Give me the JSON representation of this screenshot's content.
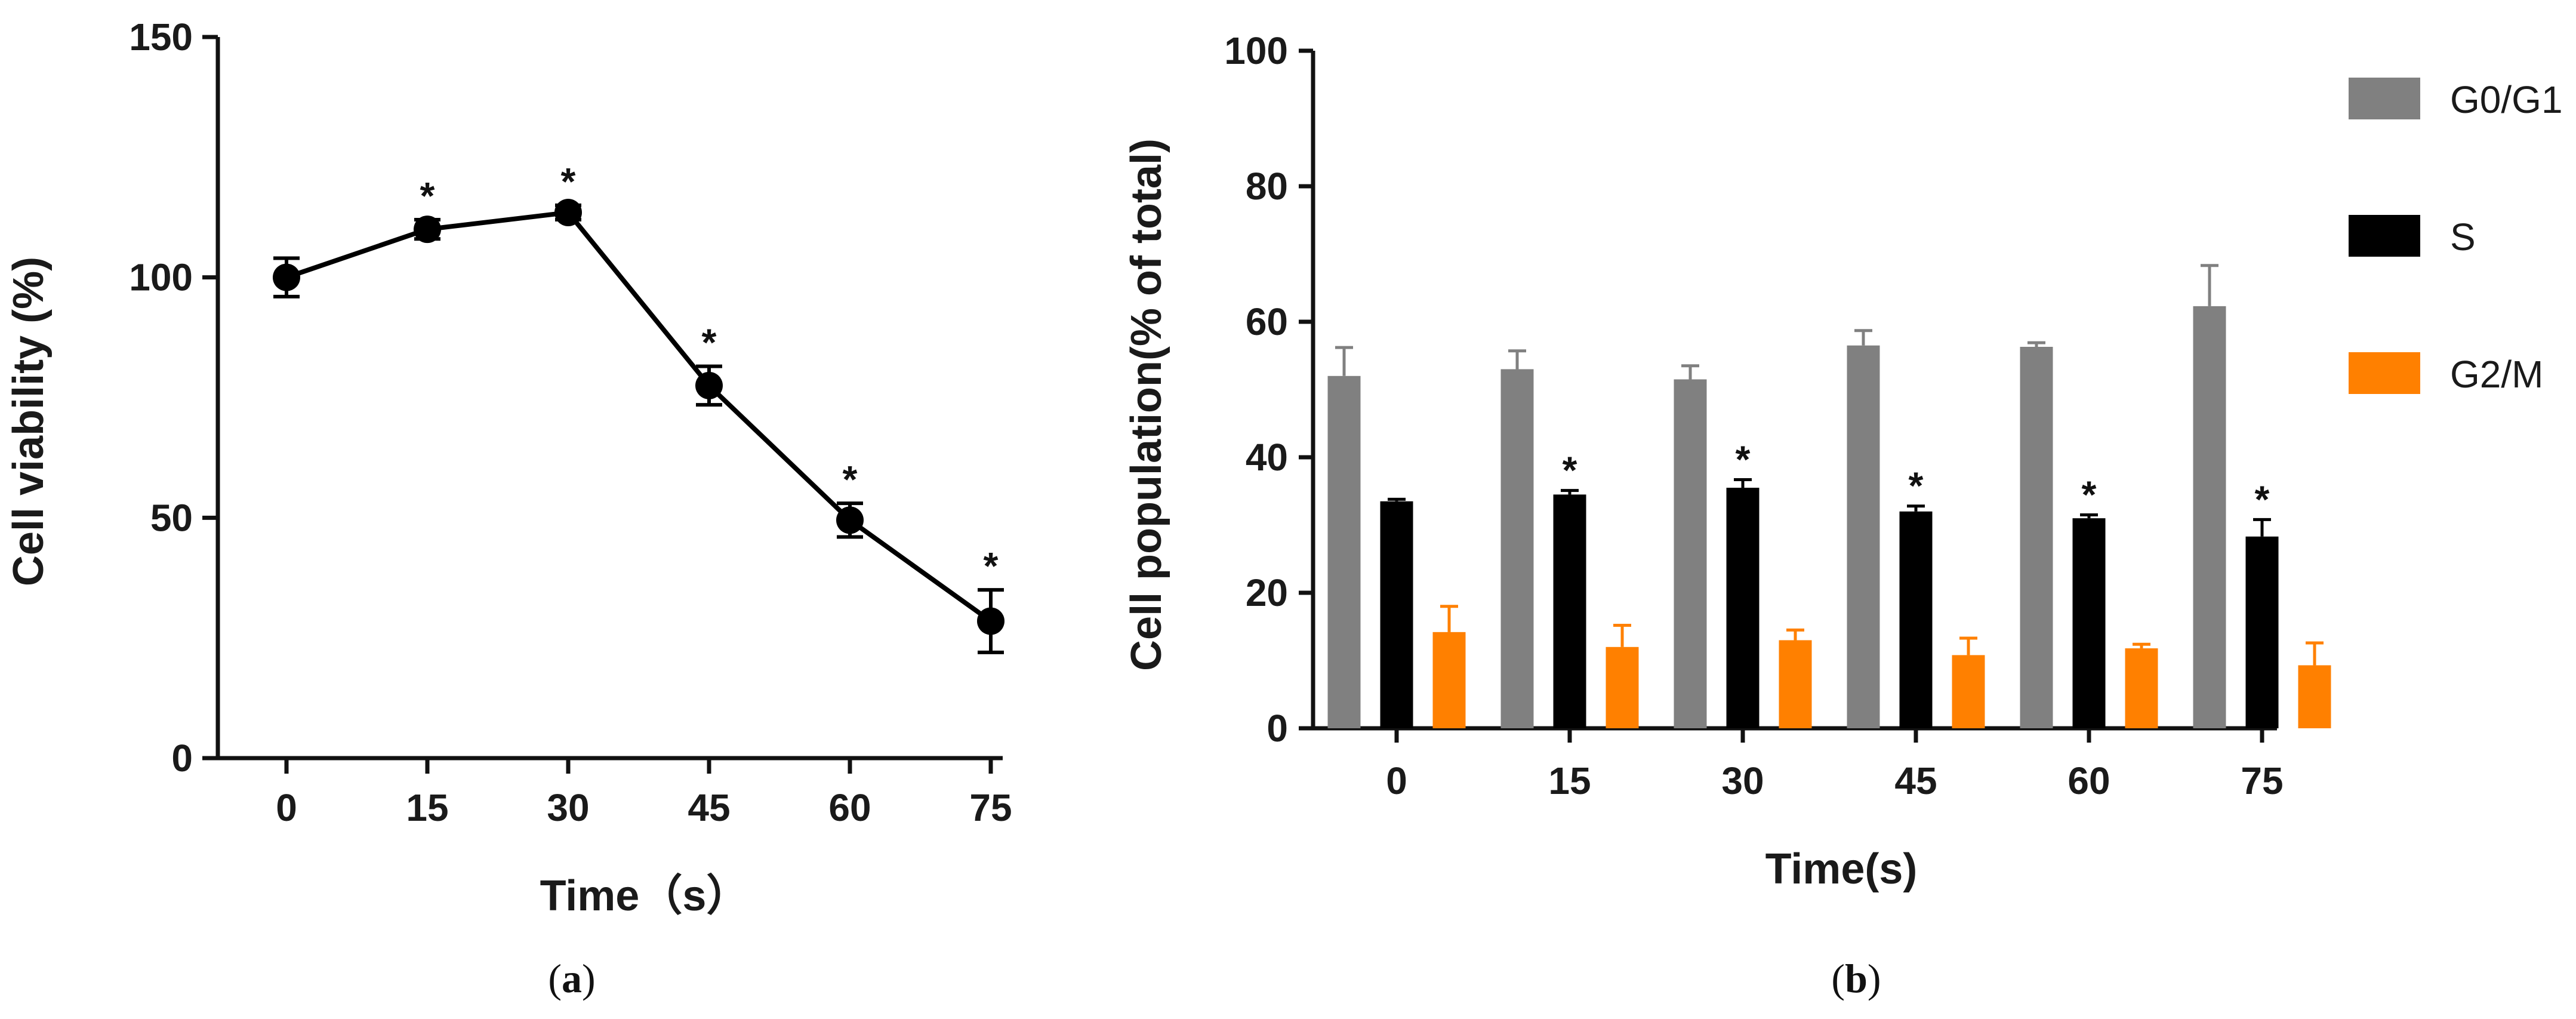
{
  "chart_data": [
    {
      "type": "line",
      "panel": "a",
      "caption": "(a)",
      "caption_letter": "a",
      "xlabel": "Time（s）",
      "ylabel": "Cell viability (%)",
      "x": [
        0,
        15,
        30,
        45,
        60,
        75
      ],
      "x_tick_labels": [
        "0",
        "15",
        "30",
        "45",
        "60",
        "75"
      ],
      "y_ticks": [
        "0",
        "50",
        "100",
        "150"
      ],
      "ylim": [
        0,
        150
      ],
      "series": [
        {
          "name": "Cell viability",
          "values": [
            100,
            110,
            113.5,
            77.5,
            49.5,
            28.5
          ],
          "errors": [
            4,
            2,
            1.5,
            4,
            3.5,
            6.5
          ],
          "significance": [
            "",
            "*",
            "*",
            "*",
            "*",
            "*"
          ]
        }
      ],
      "colors": {
        "line": "#000000",
        "marker": "#000000"
      }
    },
    {
      "type": "bar",
      "panel": "b",
      "caption": "(b)",
      "caption_letter": "b",
      "xlabel": "Time(s)",
      "ylabel": "Cell population(% of total)",
      "categories": [
        "0",
        "15",
        "30",
        "45",
        "60",
        "75"
      ],
      "y_ticks": [
        "0",
        "20",
        "40",
        "60",
        "80",
        "100"
      ],
      "ylim": [
        0,
        100
      ],
      "legend_position": "top-right",
      "series": [
        {
          "name": "G0/G1",
          "color": "#808080",
          "values": [
            52,
            53,
            51.5,
            56.5,
            56.3,
            62.3
          ],
          "errors": [
            4.2,
            2.7,
            2,
            2.2,
            0.6,
            6
          ],
          "significance": [
            "",
            "",
            "",
            "",
            "",
            ""
          ]
        },
        {
          "name": "S",
          "color": "#000000",
          "values": [
            33.5,
            34.5,
            35.5,
            32,
            31,
            28.3
          ],
          "errors": [
            0.3,
            0.6,
            1.2,
            0.8,
            0.5,
            2.5
          ],
          "significance": [
            "",
            "*",
            "*",
            "*",
            "*",
            "*"
          ]
        },
        {
          "name": "G2/M",
          "color": "#ff8000",
          "values": [
            14.2,
            12,
            13,
            10.8,
            11.8,
            9.3
          ],
          "errors": [
            3.8,
            3.2,
            1.5,
            2.5,
            0.6,
            3.3
          ],
          "significance": [
            "",
            "",
            "",
            "",
            "",
            ""
          ]
        }
      ]
    }
  ]
}
